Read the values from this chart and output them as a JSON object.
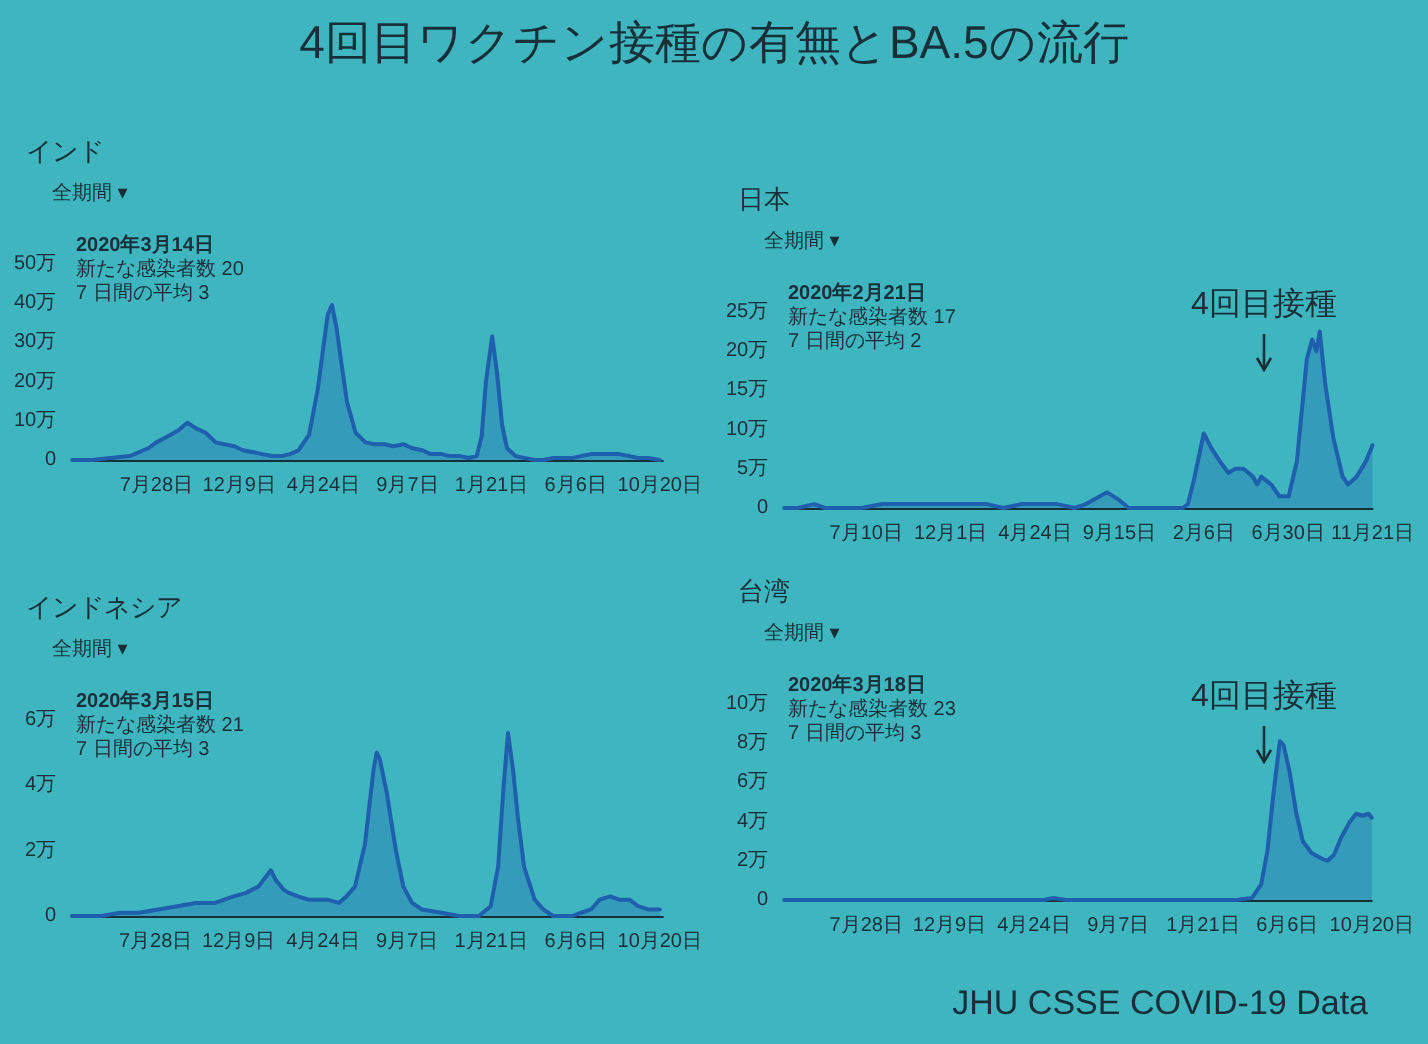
{
  "chart_data": [
    {
      "type": "other",
      "title": "4回目ワクチン接種の有無とBA.5の流行",
      "annotations": [
        "JHU CSSE COVID-19 Data"
      ]
    },
    {
      "type": "area",
      "title": "インド",
      "color": "#1e5fae",
      "annotations": [
        "全期間 ▾",
        "2020年3月14日",
        "新たな感染者数 20",
        "7 日間の平均 3"
      ],
      "x": [
        "2020-03-14",
        "2020-04-15",
        "2020-05-15",
        "2020-06-15",
        "2020-07-15",
        "2020-07-28",
        "2020-08-15",
        "2020-09-01",
        "2020-09-16",
        "2020-10-01",
        "2020-10-15",
        "2020-11-01",
        "2020-11-15",
        "2020-12-01",
        "2020-12-15",
        "2021-01-01",
        "2021-01-15",
        "2021-02-01",
        "2021-02-15",
        "2021-03-01",
        "2021-03-15",
        "2021-04-01",
        "2021-04-15",
        "2021-05-01",
        "2021-05-08",
        "2021-05-15",
        "2021-06-01",
        "2021-06-15",
        "2021-07-01",
        "2021-07-15",
        "2021-08-01",
        "2021-08-15",
        "2021-09-01",
        "2021-09-15",
        "2021-10-01",
        "2021-10-15",
        "2021-11-01",
        "2021-11-15",
        "2021-12-01",
        "2021-12-15",
        "2021-12-28",
        "2022-01-05",
        "2022-01-12",
        "2022-01-22",
        "2022-01-30",
        "2022-02-07",
        "2022-02-15",
        "2022-03-01",
        "2022-03-15",
        "2022-04-01",
        "2022-04-15",
        "2022-05-01",
        "2022-06-01",
        "2022-06-15",
        "2022-07-01",
        "2022-07-15",
        "2022-08-01",
        "2022-08-15",
        "2022-09-01",
        "2022-09-15",
        "2022-10-01",
        "2022-10-20"
      ],
      "values": [
        0,
        0,
        0.5,
        1,
        3,
        4.5,
        6,
        7.5,
        9.5,
        8,
        7,
        4.5,
        4,
        3.5,
        2.5,
        2,
        1.5,
        1,
        1,
        1.5,
        2.5,
        6.5,
        18,
        37,
        39.5,
        34,
        15,
        7,
        4.5,
        4,
        4,
        3.5,
        4,
        3,
        2.5,
        1.5,
        1.5,
        1,
        1,
        0.5,
        1,
        6,
        20,
        31.5,
        22,
        9,
        3,
        1,
        0.5,
        0,
        0,
        0.5,
        0.5,
        1,
        1.5,
        1.5,
        1.5,
        1.5,
        1,
        0.5,
        0.5,
        0
      ],
      "xlim": [
        "2020-03-14",
        "2022-10-25"
      ],
      "xticks": [
        {
          "value": "2020-07-28",
          "label": "7月28日"
        },
        {
          "value": "2020-12-09",
          "label": "12月9日"
        },
        {
          "value": "2021-04-24",
          "label": "4月24日"
        },
        {
          "value": "2021-09-07",
          "label": "9月7日"
        },
        {
          "value": "2022-01-21",
          "label": "1月21日"
        },
        {
          "value": "2022-06-06",
          "label": "6月6日"
        },
        {
          "value": "2022-10-20",
          "label": "10月20日"
        }
      ],
      "ylim": [
        0,
        50
      ],
      "yticks": [
        {
          "value": 0,
          "label": "0"
        },
        {
          "value": 10,
          "label": "10万"
        },
        {
          "value": 20,
          "label": "20万"
        },
        {
          "value": 30,
          "label": "30万"
        },
        {
          "value": 40,
          "label": "40万"
        },
        {
          "value": 50,
          "label": "50万"
        }
      ]
    },
    {
      "type": "area",
      "title": "日本",
      "color": "#1e5fae",
      "annotations": [
        "全期間 ▾",
        "2020年2月21日",
        "新たな感染者数 17",
        "7 日間の平均 2",
        "4回目接種"
      ],
      "x": [
        "2020-02-21",
        "2020-03-15",
        "2020-04-12",
        "2020-05-01",
        "2020-06-01",
        "2020-07-01",
        "2020-08-07",
        "2020-09-01",
        "2020-10-01",
        "2020-11-01",
        "2020-11-20",
        "2020-12-15",
        "2021-01-10",
        "2021-02-01",
        "2021-03-01",
        "2021-04-01",
        "2021-05-10",
        "2021-06-01",
        "2021-07-01",
        "2021-07-20",
        "2021-08-25",
        "2021-09-15",
        "2021-10-01",
        "2021-10-15",
        "2021-11-15",
        "2021-12-15",
        "2022-01-01",
        "2022-01-10",
        "2022-01-20",
        "2022-02-06",
        "2022-02-20",
        "2022-03-05",
        "2022-03-20",
        "2022-04-01",
        "2022-04-15",
        "2022-05-01",
        "2022-05-08",
        "2022-05-15",
        "2022-06-01",
        "2022-06-15",
        "2022-07-01",
        "2022-07-15",
        "2022-08-01",
        "2022-08-10",
        "2022-08-17",
        "2022-08-23",
        "2022-09-01",
        "2022-09-15",
        "2022-10-01",
        "2022-10-10",
        "2022-10-25",
        "2022-11-10",
        "2022-11-21"
      ],
      "values": [
        0,
        0,
        0.5,
        0,
        0,
        0,
        0.5,
        0.5,
        0.5,
        0.5,
        0.5,
        0.5,
        0.5,
        0.5,
        0,
        0.5,
        0.5,
        0.5,
        0,
        0.5,
        2,
        1,
        0,
        0,
        0,
        0,
        0,
        0.5,
        3.5,
        9.5,
        7.5,
        6,
        4.5,
        5,
        5,
        4,
        3,
        4,
        3,
        1.5,
        1.5,
        6,
        19,
        21.5,
        20,
        22.5,
        16,
        9,
        4,
        3,
        4,
        6,
        8
      ],
      "xlim": [
        "2020-02-21",
        "2022-11-21"
      ],
      "xticks": [
        {
          "value": "2020-07-10",
          "label": "7月10日"
        },
        {
          "value": "2020-12-01",
          "label": "12月1日"
        },
        {
          "value": "2021-04-24",
          "label": "4月24日"
        },
        {
          "value": "2021-09-15",
          "label": "9月15日"
        },
        {
          "value": "2022-02-06",
          "label": "2月6日"
        },
        {
          "value": "2022-06-30",
          "label": "6月30日"
        },
        {
          "value": "2022-11-21",
          "label": "11月21日"
        }
      ],
      "ylim": [
        0,
        25
      ],
      "yticks": [
        {
          "value": 0,
          "label": "0"
        },
        {
          "value": 5,
          "label": "5万"
        },
        {
          "value": 10,
          "label": "10万"
        },
        {
          "value": 15,
          "label": "15万"
        },
        {
          "value": 20,
          "label": "20万"
        },
        {
          "value": 25,
          "label": "25万"
        }
      ]
    },
    {
      "type": "area",
      "title": "インドネシア",
      "color": "#1e5fae",
      "annotations": [
        "全期間 ▾",
        "2020年3月15日",
        "新たな感染者数 21",
        "7 日間の平均 3"
      ],
      "x": [
        "2020-03-15",
        "2020-05-01",
        "2020-06-01",
        "2020-07-01",
        "2020-08-01",
        "2020-09-01",
        "2020-10-01",
        "2020-11-01",
        "2020-12-01",
        "2020-12-20",
        "2021-01-10",
        "2021-01-30",
        "2021-02-07",
        "2021-02-20",
        "2021-03-01",
        "2021-03-15",
        "2021-04-01",
        "2021-04-15",
        "2021-05-01",
        "2021-05-20",
        "2021-06-01",
        "2021-06-15",
        "2021-07-01",
        "2021-07-15",
        "2021-07-20",
        "2021-07-25",
        "2021-08-05",
        "2021-08-20",
        "2021-09-01",
        "2021-09-15",
        "2021-10-01",
        "2021-11-01",
        "2021-12-01",
        "2022-01-01",
        "2022-01-20",
        "2022-02-01",
        "2022-02-10",
        "2022-02-17",
        "2022-02-25",
        "2022-03-05",
        "2022-03-15",
        "2022-04-01",
        "2022-04-15",
        "2022-05-01",
        "2022-06-01",
        "2022-06-15",
        "2022-07-01",
        "2022-07-15",
        "2022-08-01",
        "2022-08-15",
        "2022-09-01",
        "2022-09-15",
        "2022-10-01",
        "2022-10-20"
      ],
      "values": [
        0,
        0,
        0.1,
        0.1,
        0.2,
        0.3,
        0.4,
        0.4,
        0.6,
        0.7,
        0.9,
        1.4,
        1.1,
        0.8,
        0.7,
        0.6,
        0.5,
        0.5,
        0.5,
        0.4,
        0.6,
        0.9,
        2.2,
        4.5,
        5,
        4.8,
        3.8,
        2,
        0.9,
        0.4,
        0.2,
        0.1,
        0,
        0,
        0.3,
        1.5,
        4,
        5.6,
        4.5,
        3,
        1.5,
        0.5,
        0.2,
        0,
        0,
        0.1,
        0.2,
        0.5,
        0.6,
        0.5,
        0.5,
        0.3,
        0.2,
        0.2
      ],
      "xlim": [
        "2020-03-15",
        "2022-10-25"
      ],
      "xticks": [
        {
          "value": "2020-07-28",
          "label": "7月28日"
        },
        {
          "value": "2020-12-09",
          "label": "12月9日"
        },
        {
          "value": "2021-04-24",
          "label": "4月24日"
        },
        {
          "value": "2021-09-07",
          "label": "9月7日"
        },
        {
          "value": "2022-01-21",
          "label": "1月21日"
        },
        {
          "value": "2022-06-06",
          "label": "6月6日"
        },
        {
          "value": "2022-10-20",
          "label": "10月20日"
        }
      ],
      "ylim": [
        0,
        6
      ],
      "yticks": [
        {
          "value": 0,
          "label": "0"
        },
        {
          "value": 2,
          "label": "2万"
        },
        {
          "value": 4,
          "label": "4万"
        },
        {
          "value": 6,
          "label": "6万"
        }
      ]
    },
    {
      "type": "area",
      "title": "台湾",
      "color": "#1e5fae",
      "annotations": [
        "全期間 ▾",
        "2020年3月18日",
        "新たな感染者数 23",
        "7 日間の平均 3",
        "4回目接種"
      ],
      "x": [
        "2020-03-18",
        "2020-06-01",
        "2020-12-01",
        "2021-05-10",
        "2021-05-25",
        "2021-06-15",
        "2021-07-15",
        "2021-10-01",
        "2022-01-15",
        "2022-03-15",
        "2022-04-10",
        "2022-04-25",
        "2022-05-05",
        "2022-05-15",
        "2022-05-25",
        "2022-05-31",
        "2022-06-10",
        "2022-06-20",
        "2022-07-01",
        "2022-07-15",
        "2022-08-01",
        "2022-08-10",
        "2022-08-20",
        "2022-09-01",
        "2022-09-15",
        "2022-09-25",
        "2022-10-05",
        "2022-10-15",
        "2022-10-20"
      ],
      "values": [
        0,
        0,
        0,
        0,
        0.1,
        0,
        0,
        0,
        0,
        0,
        0.1,
        0.8,
        2.5,
        5.5,
        8.1,
        7.9,
        6.5,
        4.5,
        3,
        2.4,
        2.1,
        2,
        2.3,
        3.2,
        4,
        4.4,
        4.3,
        4.4,
        4.2
      ],
      "xlim": [
        "2020-03-18",
        "2022-10-20"
      ],
      "xticks": [
        {
          "value": "2020-07-28",
          "label": "7月28日"
        },
        {
          "value": "2020-12-09",
          "label": "12月9日"
        },
        {
          "value": "2021-04-24",
          "label": "4月24日"
        },
        {
          "value": "2021-09-07",
          "label": "9月7日"
        },
        {
          "value": "2022-01-21",
          "label": "1月21日"
        },
        {
          "value": "2022-06-06",
          "label": "6月6日"
        },
        {
          "value": "2022-10-20",
          "label": "10月20日"
        }
      ],
      "ylim": [
        0,
        10
      ],
      "yticks": [
        {
          "value": 0,
          "label": "0"
        },
        {
          "value": 2,
          "label": "2万"
        },
        {
          "value": 4,
          "label": "4万"
        },
        {
          "value": 6,
          "label": "6万"
        },
        {
          "value": 8,
          "label": "8万"
        },
        {
          "value": 10,
          "label": "10万"
        }
      ]
    }
  ]
}
